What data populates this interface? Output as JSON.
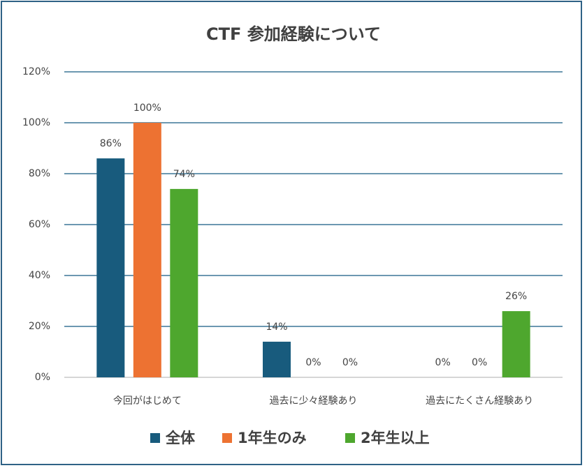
{
  "chart_data": {
    "type": "bar",
    "title": "CTF 参加経験について",
    "categories": [
      "今回がはじめて",
      "過去に少々経験あり",
      "過去にたくさん経験あり"
    ],
    "series": [
      {
        "name": "全体",
        "color": "#185b7d",
        "values": [
          86,
          14,
          0
        ],
        "value_labels": [
          "86%",
          "14%",
          "0%"
        ]
      },
      {
        "name": "1年生のみ",
        "color": "#ed7232",
        "values": [
          100,
          0,
          0
        ],
        "value_labels": [
          "100%",
          "0%",
          "0%"
        ]
      },
      {
        "name": "2年生以上",
        "color": "#4ea72e",
        "values": [
          74,
          0,
          26
        ],
        "value_labels": [
          "74%",
          "0%",
          "26%"
        ]
      }
    ],
    "ylim": [
      0,
      120
    ],
    "yticks": [
      {
        "value": 0,
        "label": "0%"
      },
      {
        "value": 20,
        "label": "20%"
      },
      {
        "value": 40,
        "label": "40%"
      },
      {
        "value": 60,
        "label": "60%"
      },
      {
        "value": 80,
        "label": "80%"
      },
      {
        "value": 100,
        "label": "100%"
      },
      {
        "value": 120,
        "label": "120%"
      }
    ],
    "grid": true,
    "legend": "bottom"
  }
}
